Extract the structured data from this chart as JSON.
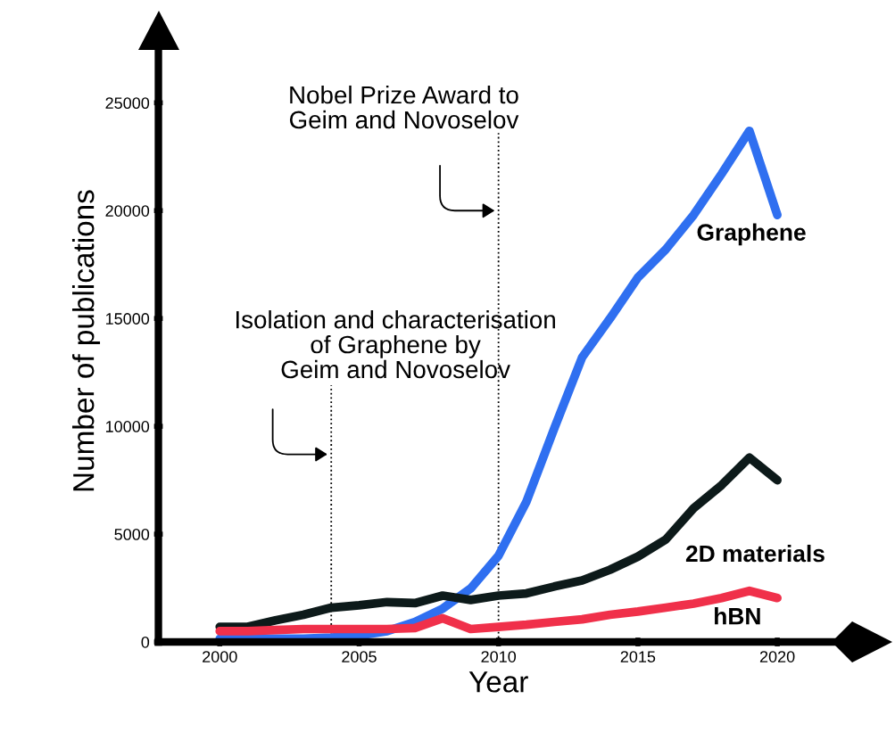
{
  "chart_data": {
    "type": "line",
    "xlabel": "Year",
    "ylabel": "Number of publications",
    "x": [
      2000,
      2001,
      2002,
      2003,
      2004,
      2005,
      2006,
      2007,
      2008,
      2009,
      2010,
      2011,
      2012,
      2013,
      2014,
      2015,
      2016,
      2017,
      2018,
      2019,
      2020
    ],
    "series": [
      {
        "name": "Graphene",
        "color": "#2f6ff0",
        "values": [
          150,
          150,
          150,
          150,
          200,
          300,
          500,
          930,
          1550,
          2480,
          4000,
          6500,
          9900,
          13200,
          15000,
          16900,
          18200,
          19800,
          21700,
          23700,
          19800
        ]
      },
      {
        "name": "2D materials",
        "color": "#0d1a1a",
        "values": [
          700,
          700,
          1000,
          1260,
          1590,
          1700,
          1850,
          1800,
          2150,
          1950,
          2150,
          2250,
          2570,
          2850,
          3350,
          3960,
          4750,
          6200,
          7270,
          8550,
          7500
        ]
      },
      {
        "name": "hBN",
        "color": "#f0304a",
        "values": [
          500,
          500,
          550,
          600,
          600,
          600,
          600,
          650,
          1100,
          600,
          700,
          800,
          930,
          1050,
          1260,
          1410,
          1590,
          1780,
          2040,
          2370,
          2040
        ]
      }
    ],
    "xlim": [
      1997.8,
      2022.2
    ],
    "ylim": [
      0,
      27900
    ],
    "xticks": [
      2000,
      2005,
      2010,
      2015,
      2020
    ],
    "yticks": [
      0,
      5000,
      10000,
      15000,
      20000,
      25000
    ],
    "ref_lines": [
      {
        "axis": "x",
        "value": 2004,
        "label": "Isolation and characterisation\nof Graphene by\nGeim and Novoselov",
        "line_style": "dotted",
        "color": "#000000"
      },
      {
        "axis": "x",
        "value": 2010,
        "label": "Nobel Prize Award to\nGeim and Novoselov",
        "line_style": "dotted",
        "color": "#000000"
      }
    ],
    "grid": false,
    "legend": false
  }
}
